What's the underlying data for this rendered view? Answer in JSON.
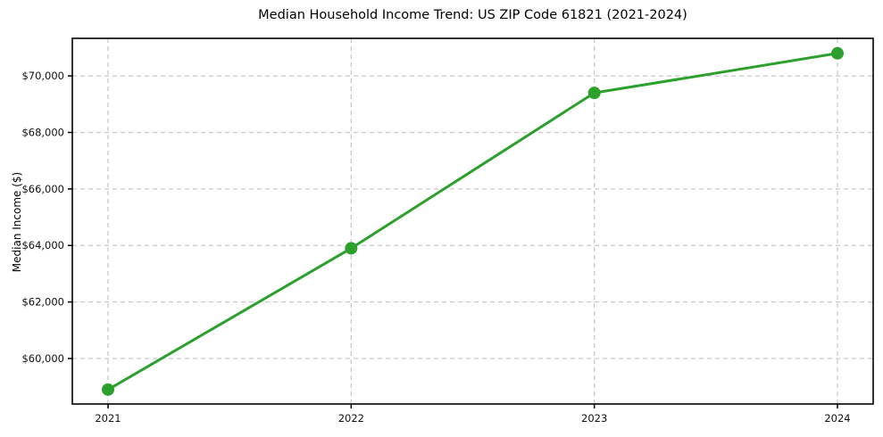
{
  "chart_data": {
    "type": "line",
    "title": "Median Household Income Trend: US ZIP Code 61821 (2021-2024)",
    "xlabel": "",
    "ylabel": "Median Income ($)",
    "x": [
      2021,
      2022,
      2023,
      2024
    ],
    "xtick_labels": [
      "2021",
      "2022",
      "2023",
      "2024"
    ],
    "series": [
      {
        "name": "Median Household Income",
        "values": [
          58900,
          63900,
          69400,
          70800
        ]
      }
    ],
    "ylim": [
      58390,
      71330
    ],
    "yticks": [
      60000,
      62000,
      64000,
      66000,
      68000,
      70000
    ],
    "ytick_labels": [
      "$60,000",
      "$62,000",
      "$64,000",
      "$66,000",
      "$68,000",
      "$70,000"
    ],
    "grid": true,
    "grid_style": "dashed",
    "legend": "none",
    "colors": {
      "line": "#2ca02c",
      "marker": "#2ca02c",
      "grid": "#c9c9c9",
      "spine": "#000000",
      "text": "#111111",
      "background": "#ffffff"
    }
  }
}
